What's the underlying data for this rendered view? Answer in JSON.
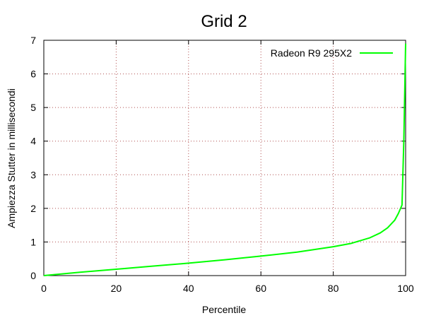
{
  "chart_data": {
    "type": "line",
    "title": "Grid 2",
    "xlabel": "Percentile",
    "ylabel": "Ampiezza Stutter in millisecondi",
    "xlim": [
      0,
      100
    ],
    "ylim": [
      0,
      7
    ],
    "xticks": [
      0,
      20,
      40,
      60,
      80,
      100
    ],
    "yticks": [
      0,
      1,
      2,
      3,
      4,
      5,
      6,
      7
    ],
    "grid": true,
    "legend_position": "top-right",
    "series": [
      {
        "name": "Radeon R9 295X2",
        "color": "#00ff00",
        "x": [
          0,
          10,
          20,
          30,
          40,
          50,
          60,
          70,
          80,
          85,
          90,
          93,
          95,
          97,
          98,
          99,
          99.5,
          100
        ],
        "y": [
          0,
          0.1,
          0.19,
          0.28,
          0.37,
          0.47,
          0.58,
          0.7,
          0.86,
          0.96,
          1.12,
          1.27,
          1.42,
          1.65,
          1.85,
          2.1,
          4.0,
          6.9
        ]
      }
    ]
  }
}
